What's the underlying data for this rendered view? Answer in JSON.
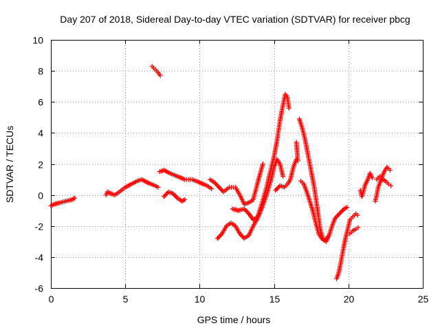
{
  "chart_data": {
    "type": "scatter",
    "title": "Day 207 of 2018, Sidereal Day-to-day VTEC variation (SDTVAR) for receiver pbcg",
    "xlabel": "GPS time / hours",
    "ylabel": "SDTVAR / TECUs",
    "xlim": [
      0,
      25
    ],
    "ylim": [
      -6,
      10
    ],
    "x_ticks": [
      0,
      5,
      10,
      15,
      20,
      25
    ],
    "y_ticks": [
      -6,
      -4,
      -2,
      0,
      2,
      4,
      6,
      8,
      10
    ],
    "grid": true,
    "marker": "plus",
    "color": "#ff0000",
    "series": [
      {
        "name": "seg1",
        "points": [
          [
            0.0,
            -0.7
          ],
          [
            0.2,
            -0.6
          ],
          [
            0.4,
            -0.55
          ],
          [
            0.6,
            -0.5
          ],
          [
            0.8,
            -0.45
          ],
          [
            1.0,
            -0.4
          ],
          [
            1.2,
            -0.35
          ],
          [
            1.4,
            -0.3
          ],
          [
            1.6,
            -0.2
          ]
        ]
      },
      {
        "name": "seg2",
        "points": [
          [
            3.7,
            0.0
          ],
          [
            3.8,
            0.2
          ],
          [
            4.0,
            0.1
          ],
          [
            4.3,
            0.0
          ],
          [
            4.6,
            0.2
          ],
          [
            5.0,
            0.5
          ],
          [
            5.4,
            0.7
          ],
          [
            5.8,
            0.9
          ],
          [
            6.1,
            1.0
          ],
          [
            6.5,
            0.8
          ],
          [
            7.0,
            0.6
          ],
          [
            7.2,
            0.5
          ]
        ]
      },
      {
        "name": "seg3",
        "points": [
          [
            6.8,
            8.3
          ],
          [
            7.0,
            8.1
          ],
          [
            7.2,
            7.9
          ],
          [
            7.35,
            7.7
          ]
        ]
      },
      {
        "name": "seg4",
        "points": [
          [
            7.3,
            1.5
          ],
          [
            7.6,
            1.6
          ],
          [
            8.0,
            1.4
          ],
          [
            8.5,
            1.2
          ],
          [
            9.0,
            1.0
          ],
          [
            9.5,
            1.0
          ],
          [
            10.0,
            0.8
          ],
          [
            10.5,
            0.6
          ],
          [
            10.8,
            0.4
          ]
        ]
      },
      {
        "name": "seg5",
        "points": [
          [
            7.6,
            -0.1
          ],
          [
            7.9,
            0.2
          ],
          [
            8.2,
            0.1
          ],
          [
            8.5,
            -0.2
          ],
          [
            8.8,
            -0.4
          ],
          [
            9.0,
            -0.3
          ]
        ]
      },
      {
        "name": "seg6",
        "points": [
          [
            10.7,
            1.0
          ],
          [
            11.0,
            0.8
          ],
          [
            11.3,
            0.5
          ],
          [
            11.6,
            0.2
          ],
          [
            12.0,
            0.5
          ],
          [
            12.4,
            0.5
          ],
          [
            12.7,
            0.0
          ],
          [
            13.0,
            -0.6
          ],
          [
            13.3,
            -0.5
          ],
          [
            13.6,
            -0.3
          ],
          [
            13.9,
            0.8
          ],
          [
            14.1,
            1.5
          ],
          [
            14.25,
            2.0
          ]
        ]
      },
      {
        "name": "seg7",
        "points": [
          [
            11.2,
            -2.8
          ],
          [
            11.5,
            -2.5
          ],
          [
            11.8,
            -2.0
          ],
          [
            12.1,
            -1.8
          ],
          [
            12.4,
            -2.0
          ],
          [
            12.7,
            -2.5
          ],
          [
            13.0,
            -2.8
          ],
          [
            13.3,
            -2.6
          ],
          [
            13.6,
            -2.0
          ],
          [
            13.9,
            -1.5
          ],
          [
            14.2,
            -0.8
          ],
          [
            14.5,
            0.0
          ],
          [
            14.8,
            1.0
          ],
          [
            15.0,
            1.8
          ],
          [
            15.2,
            2.3
          ],
          [
            15.4,
            2.0
          ],
          [
            15.6,
            1.2
          ]
        ]
      },
      {
        "name": "seg8",
        "points": [
          [
            12.2,
            -0.9
          ],
          [
            12.6,
            -1.0
          ],
          [
            13.0,
            -0.9
          ],
          [
            13.3,
            -1.2
          ],
          [
            13.6,
            -1.6
          ],
          [
            13.9,
            -1.4
          ],
          [
            14.2,
            -0.5
          ],
          [
            14.5,
            0.5
          ],
          [
            14.8,
            1.7
          ],
          [
            15.0,
            2.5
          ],
          [
            15.2,
            3.5
          ],
          [
            15.4,
            4.8
          ],
          [
            15.6,
            5.8
          ],
          [
            15.75,
            6.5
          ],
          [
            15.9,
            6.3
          ],
          [
            16.0,
            5.6
          ]
        ]
      },
      {
        "name": "seg9",
        "points": [
          [
            15.1,
            0.3
          ],
          [
            15.4,
            0.6
          ],
          [
            15.7,
            0.5
          ],
          [
            15.9,
            0.7
          ],
          [
            16.1,
            1.0
          ],
          [
            16.3,
            1.8
          ],
          [
            16.5,
            2.3
          ],
          [
            16.6,
            2.2
          ],
          [
            16.5,
            3.4
          ]
        ]
      },
      {
        "name": "seg10",
        "points": [
          [
            16.7,
            4.9
          ],
          [
            16.9,
            4.3
          ],
          [
            17.1,
            3.5
          ],
          [
            17.3,
            2.5
          ],
          [
            17.5,
            1.5
          ],
          [
            17.7,
            0.5
          ],
          [
            17.9,
            -0.8
          ],
          [
            18.1,
            -2.2
          ],
          [
            18.3,
            -2.9
          ],
          [
            18.5,
            -3.0
          ],
          [
            18.7,
            -2.6
          ],
          [
            18.9,
            -2.0
          ],
          [
            19.1,
            -1.5
          ],
          [
            19.4,
            -1.2
          ],
          [
            19.7,
            -0.9
          ],
          [
            19.9,
            -0.8
          ]
        ]
      },
      {
        "name": "seg11",
        "points": [
          [
            16.8,
            0.9
          ],
          [
            17.0,
            0.7
          ],
          [
            17.2,
            0.2
          ],
          [
            17.4,
            -0.4
          ],
          [
            17.6,
            -1.0
          ],
          [
            17.8,
            -1.8
          ],
          [
            18.0,
            -2.5
          ],
          [
            18.2,
            -2.8
          ],
          [
            18.4,
            -2.9
          ],
          [
            18.6,
            -2.7
          ]
        ]
      },
      {
        "name": "seg12",
        "points": [
          [
            19.2,
            -5.4
          ],
          [
            19.35,
            -5.0
          ],
          [
            19.5,
            -4.3
          ],
          [
            19.65,
            -3.5
          ],
          [
            19.8,
            -2.8
          ],
          [
            19.95,
            -2.2
          ],
          [
            20.1,
            -1.6
          ],
          [
            20.3,
            -1.4
          ],
          [
            20.5,
            -1.2
          ],
          [
            20.6,
            -1.3
          ]
        ]
      },
      {
        "name": "seg13",
        "points": [
          [
            20.1,
            -2.5
          ],
          [
            20.3,
            -2.3
          ],
          [
            20.5,
            -2.2
          ],
          [
            20.65,
            -2.1
          ]
        ]
      },
      {
        "name": "seg14",
        "points": [
          [
            20.8,
            0.3
          ],
          [
            20.9,
            -0.1
          ],
          [
            21.0,
            0.2
          ],
          [
            21.1,
            0.6
          ],
          [
            21.3,
            1.0
          ],
          [
            21.45,
            1.4
          ],
          [
            21.6,
            1.1
          ]
        ]
      },
      {
        "name": "seg15",
        "points": [
          [
            21.8,
            -0.4
          ],
          [
            21.9,
            0.0
          ],
          [
            22.0,
            0.5
          ],
          [
            22.2,
            1.0
          ],
          [
            22.4,
            1.5
          ],
          [
            22.6,
            1.8
          ],
          [
            22.8,
            1.6
          ]
        ]
      },
      {
        "name": "seg16",
        "points": [
          [
            21.9,
            1.0
          ],
          [
            22.1,
            1.2
          ],
          [
            22.3,
            1.0
          ],
          [
            22.5,
            0.9
          ],
          [
            22.7,
            0.7
          ],
          [
            22.85,
            0.6
          ]
        ]
      }
    ]
  }
}
